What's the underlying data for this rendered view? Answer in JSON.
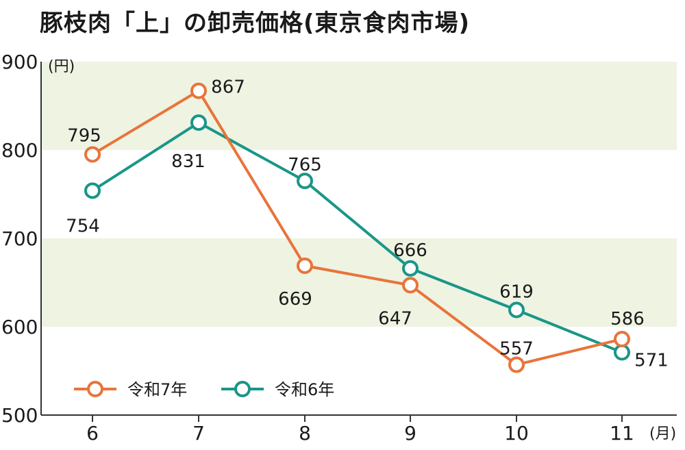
{
  "chart_data": {
    "type": "line",
    "title": "豚枝肉「上」の卸売価格(東京食肉市場)",
    "y_unit": "(円)",
    "x_unit": "(月)",
    "categories": [
      "6",
      "7",
      "8",
      "9",
      "10",
      "11"
    ],
    "ylim": [
      500,
      900
    ],
    "yticks": [
      "500",
      "600",
      "700",
      "800",
      "900"
    ],
    "band_color": "#eef3e2",
    "grid": false,
    "legend_position": "bottom-left",
    "series": [
      {
        "name": "令和7年",
        "color": "#e8743b",
        "values": [
          795,
          867,
          669,
          647,
          557,
          586
        ],
        "value_labels": [
          "795",
          "867",
          "669",
          "647",
          "557",
          "586"
        ]
      },
      {
        "name": "令和6年",
        "color": "#1a9688",
        "values": [
          754,
          831,
          765,
          666,
          619,
          571
        ],
        "value_labels": [
          "754",
          "831",
          "765",
          "666",
          "619",
          "571"
        ]
      }
    ]
  }
}
